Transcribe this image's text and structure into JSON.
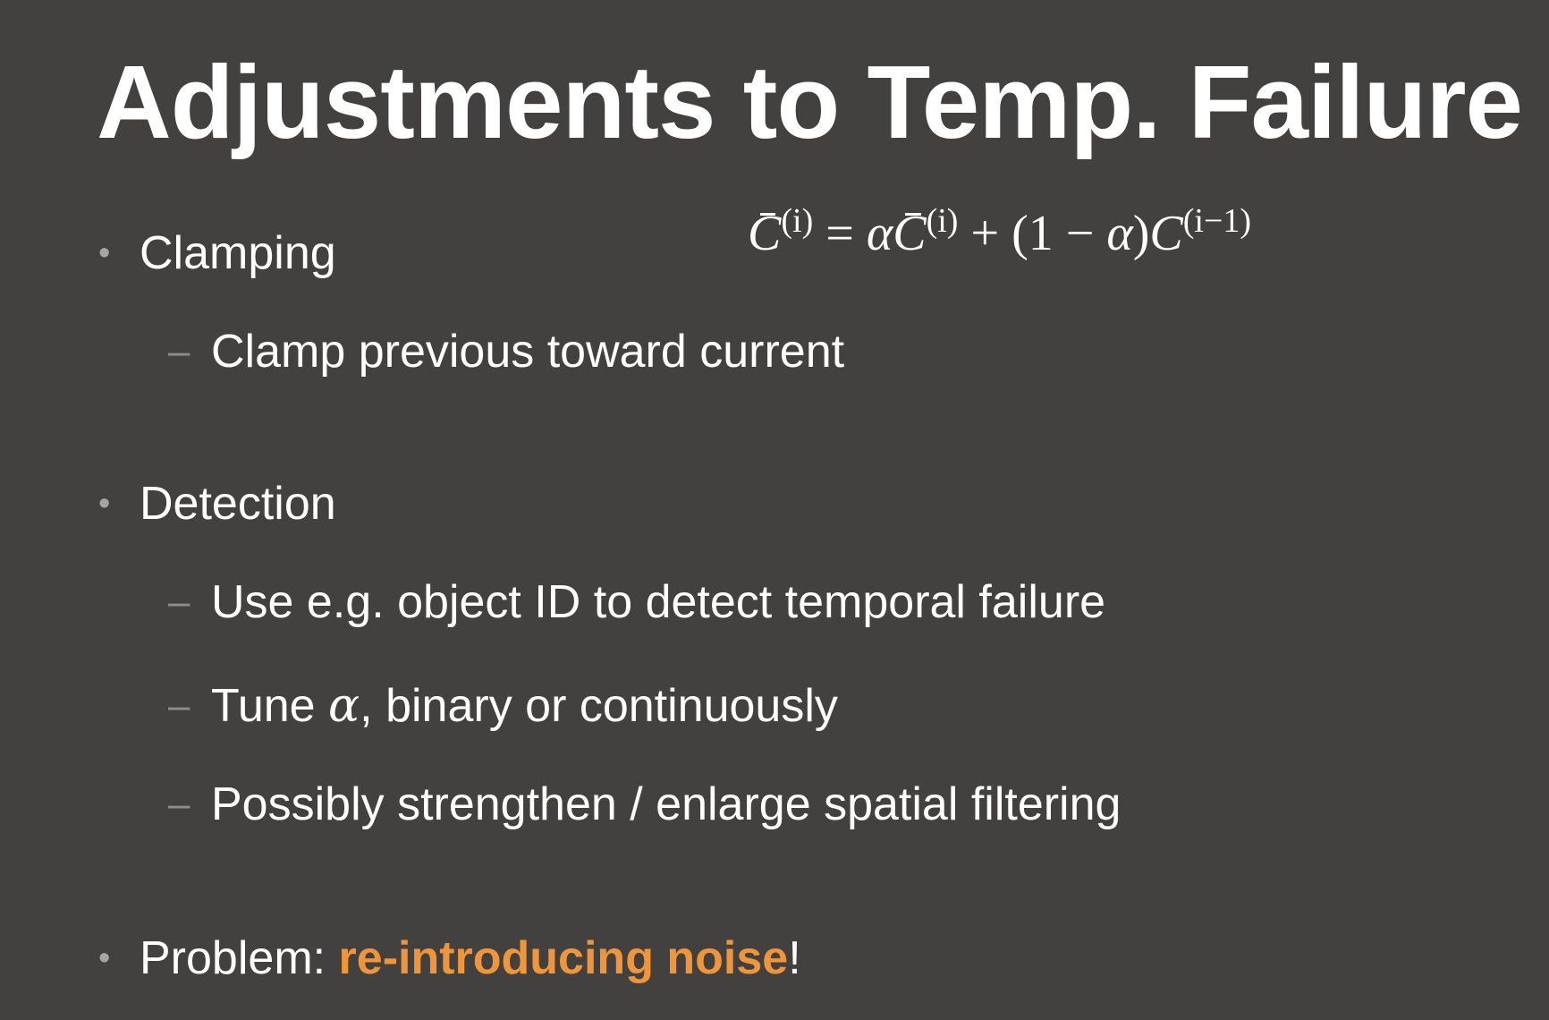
{
  "slide": {
    "title": "Adjustments to Temp. Failure",
    "colors": {
      "background": "#434140",
      "text": "#ffffff",
      "highlight": "#f0963a",
      "bullet_marker": "#a7a6a5"
    },
    "formula": {
      "lhs_symbol": "C",
      "lhs_superscript": "(i)",
      "equals": "=",
      "alpha": "α",
      "rhs1_symbol": "C",
      "rhs1_superscript": "(i)",
      "plus": "+",
      "open_paren": "(1",
      "minus": "−",
      "close_paren": ")",
      "rhs2_symbol": "C",
      "rhs2_superscript": "(i−1)"
    },
    "bullets": [
      {
        "marker": "•",
        "text": "Clamping",
        "subitems": [
          {
            "marker": "–",
            "text": "Clamp previous toward current"
          }
        ]
      },
      {
        "marker": "•",
        "text": "Detection",
        "subitems": [
          {
            "marker": "–",
            "text": "Use e.g. object ID to detect temporal failure"
          },
          {
            "marker": "–",
            "text_before": "Tune ",
            "math": "α",
            "text_after": ", binary or continuously"
          },
          {
            "marker": "–",
            "text": "Possibly strengthen / enlarge spatial filtering"
          }
        ]
      },
      {
        "marker": "•",
        "text_before": "Problem: ",
        "highlight": "re-introducing noise",
        "text_after": "!"
      }
    ]
  }
}
